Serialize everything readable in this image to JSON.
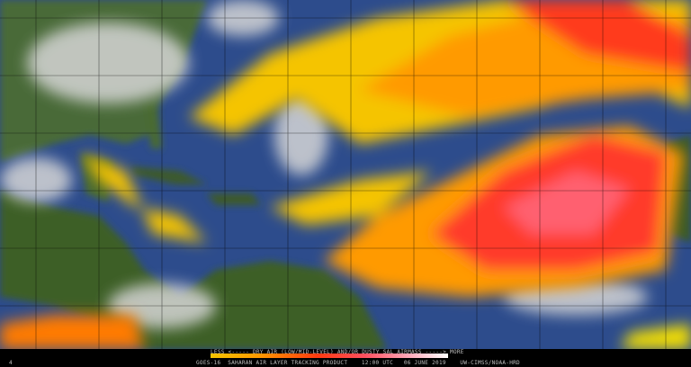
{
  "product": {
    "legend_text": "LESS <----- DRY AIR (LOW/MID-LEVEL) AND/OR DUSTY SAL AIRMASS -----> MORE",
    "footer_text": "GOES-16  SAHARAN AIR LAYER TRACKING PRODUCT    12:00 UTC   06 JUNE 2019    UW-CIMSS/NOAA-HRD",
    "corner_mark": "4"
  },
  "colors": {
    "ocean": "#2b4a8a",
    "land": "#3f5e2a",
    "cloud": "#d8d8d8",
    "sal_low": "#f5c400",
    "sal_mid": "#ff6a00",
    "sal_high": "#ff2a2a",
    "sal_max": "#ffb0c0"
  }
}
